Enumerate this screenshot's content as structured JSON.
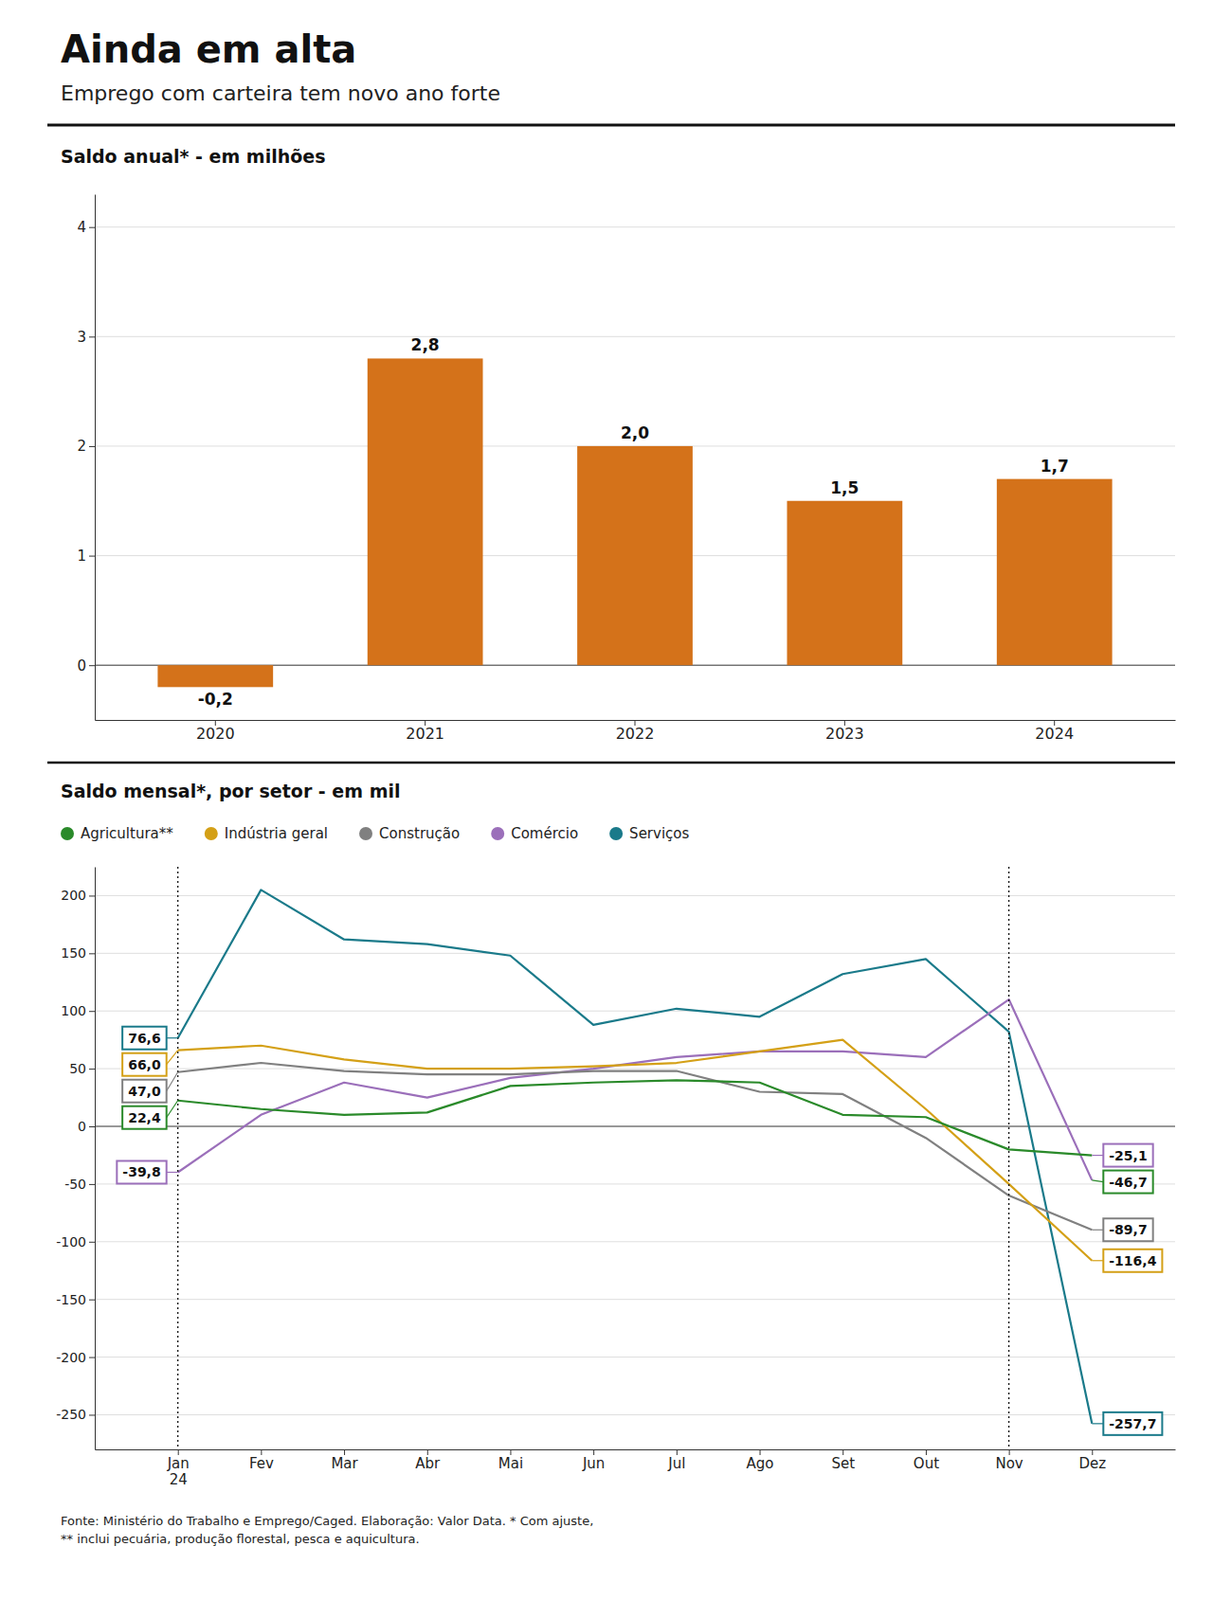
{
  "title": "Ainda em alta",
  "subtitle": "Emprego com carteira tem novo ano forte",
  "footnote": "Fonte: Ministério do Trabalho e Emprego/Caged. Elaboração: Valor Data. * Com ajuste,\n** inclui pecuária, produção florestal, pesca e aquicultura.",
  "chart_data": [
    {
      "type": "bar",
      "title": "Saldo anual* - em milhões",
      "categories": [
        "2020",
        "2021",
        "2022",
        "2023",
        "2024"
      ],
      "values": [
        -0.2,
        2.8,
        2.0,
        1.5,
        1.7
      ],
      "value_labels": [
        "-0,2",
        "2,8",
        "2,0",
        "1,5",
        "1,7"
      ],
      "color": "#D4721A",
      "ylim": [
        -0.5,
        4.3
      ],
      "yticks": [
        0,
        1,
        2,
        3,
        4
      ],
      "grid": true,
      "data_labels": true
    },
    {
      "type": "line",
      "title": "Saldo mensal*, por setor - em mil",
      "categories": [
        "Jan\n24",
        "Fev",
        "Mar",
        "Abr",
        "Mai",
        "Jun",
        "Jul",
        "Ago",
        "Set",
        "Out",
        "Nov",
        "Dez"
      ],
      "series": [
        {
          "name": "Agricultura**",
          "color": "#2a8a2a",
          "values": [
            22.4,
            15.0,
            10.0,
            12.0,
            35.0,
            38.0,
            40.0,
            38.0,
            10.0,
            8.0,
            -20.0,
            -25.1
          ]
        },
        {
          "name": "Indústria geral",
          "color": "#d4a017",
          "values": [
            66.0,
            70.0,
            58.0,
            50.0,
            50.0,
            52.0,
            55.0,
            65.0,
            75.0,
            15.0,
            -50.0,
            -116.4
          ]
        },
        {
          "name": "Construção",
          "color": "#808080",
          "values": [
            47.0,
            55.0,
            48.0,
            45.0,
            45.0,
            48.0,
            48.0,
            30.0,
            28.0,
            -10.0,
            -60.0,
            -89.7
          ]
        },
        {
          "name": "Comércio",
          "color": "#9b6fba",
          "values": [
            -39.8,
            10.0,
            38.0,
            25.0,
            42.0,
            50.0,
            60.0,
            65.0,
            65.0,
            60.0,
            110.0,
            -46.7
          ]
        },
        {
          "name": "Serviços",
          "color": "#1a7a8a",
          "values": [
            76.6,
            205.0,
            162.0,
            158.0,
            148.0,
            88.0,
            102.0,
            95.0,
            132.0,
            145.0,
            82.0,
            -257.7
          ]
        }
      ],
      "ylim": [
        -280,
        225
      ],
      "yticks": [
        -250,
        -200,
        -150,
        -100,
        -50,
        0,
        50,
        100,
        150,
        200
      ],
      "grid": true,
      "legend": "top",
      "reference_lines": [
        {
          "x": "Jan\n24"
        },
        {
          "x": "Nov"
        }
      ],
      "annotations": [
        {
          "text": "76,6",
          "value": 76.6,
          "x": "Jan\n24",
          "color": "#1a7a8a"
        },
        {
          "text": "66,0",
          "value": 66.0,
          "x": "Jan\n24",
          "color": "#d4a017"
        },
        {
          "text": "47,0",
          "value": 47.0,
          "x": "Jan\n24",
          "color": "#808080"
        },
        {
          "text": "22,4",
          "value": 22.4,
          "x": "Jan\n24",
          "color": "#2a8a2a"
        },
        {
          "text": "-39,8",
          "value": -39.8,
          "x": "Jan\n24",
          "color": "#9b6fba"
        },
        {
          "text": "-25,1",
          "value": -25.1,
          "x": "Dez",
          "color": "#9b6fba"
        },
        {
          "text": "-46,7",
          "value": -46.7,
          "x": "Dez",
          "color": "#2a8a2a"
        },
        {
          "text": "-89,7",
          "value": -89.7,
          "x": "Dez",
          "color": "#808080"
        },
        {
          "text": "-116,4",
          "value": -116.4,
          "x": "Dez",
          "color": "#d4a017"
        },
        {
          "text": "-257,7",
          "value": -257.7,
          "x": "Dez",
          "color": "#1a7a8a"
        }
      ]
    }
  ]
}
